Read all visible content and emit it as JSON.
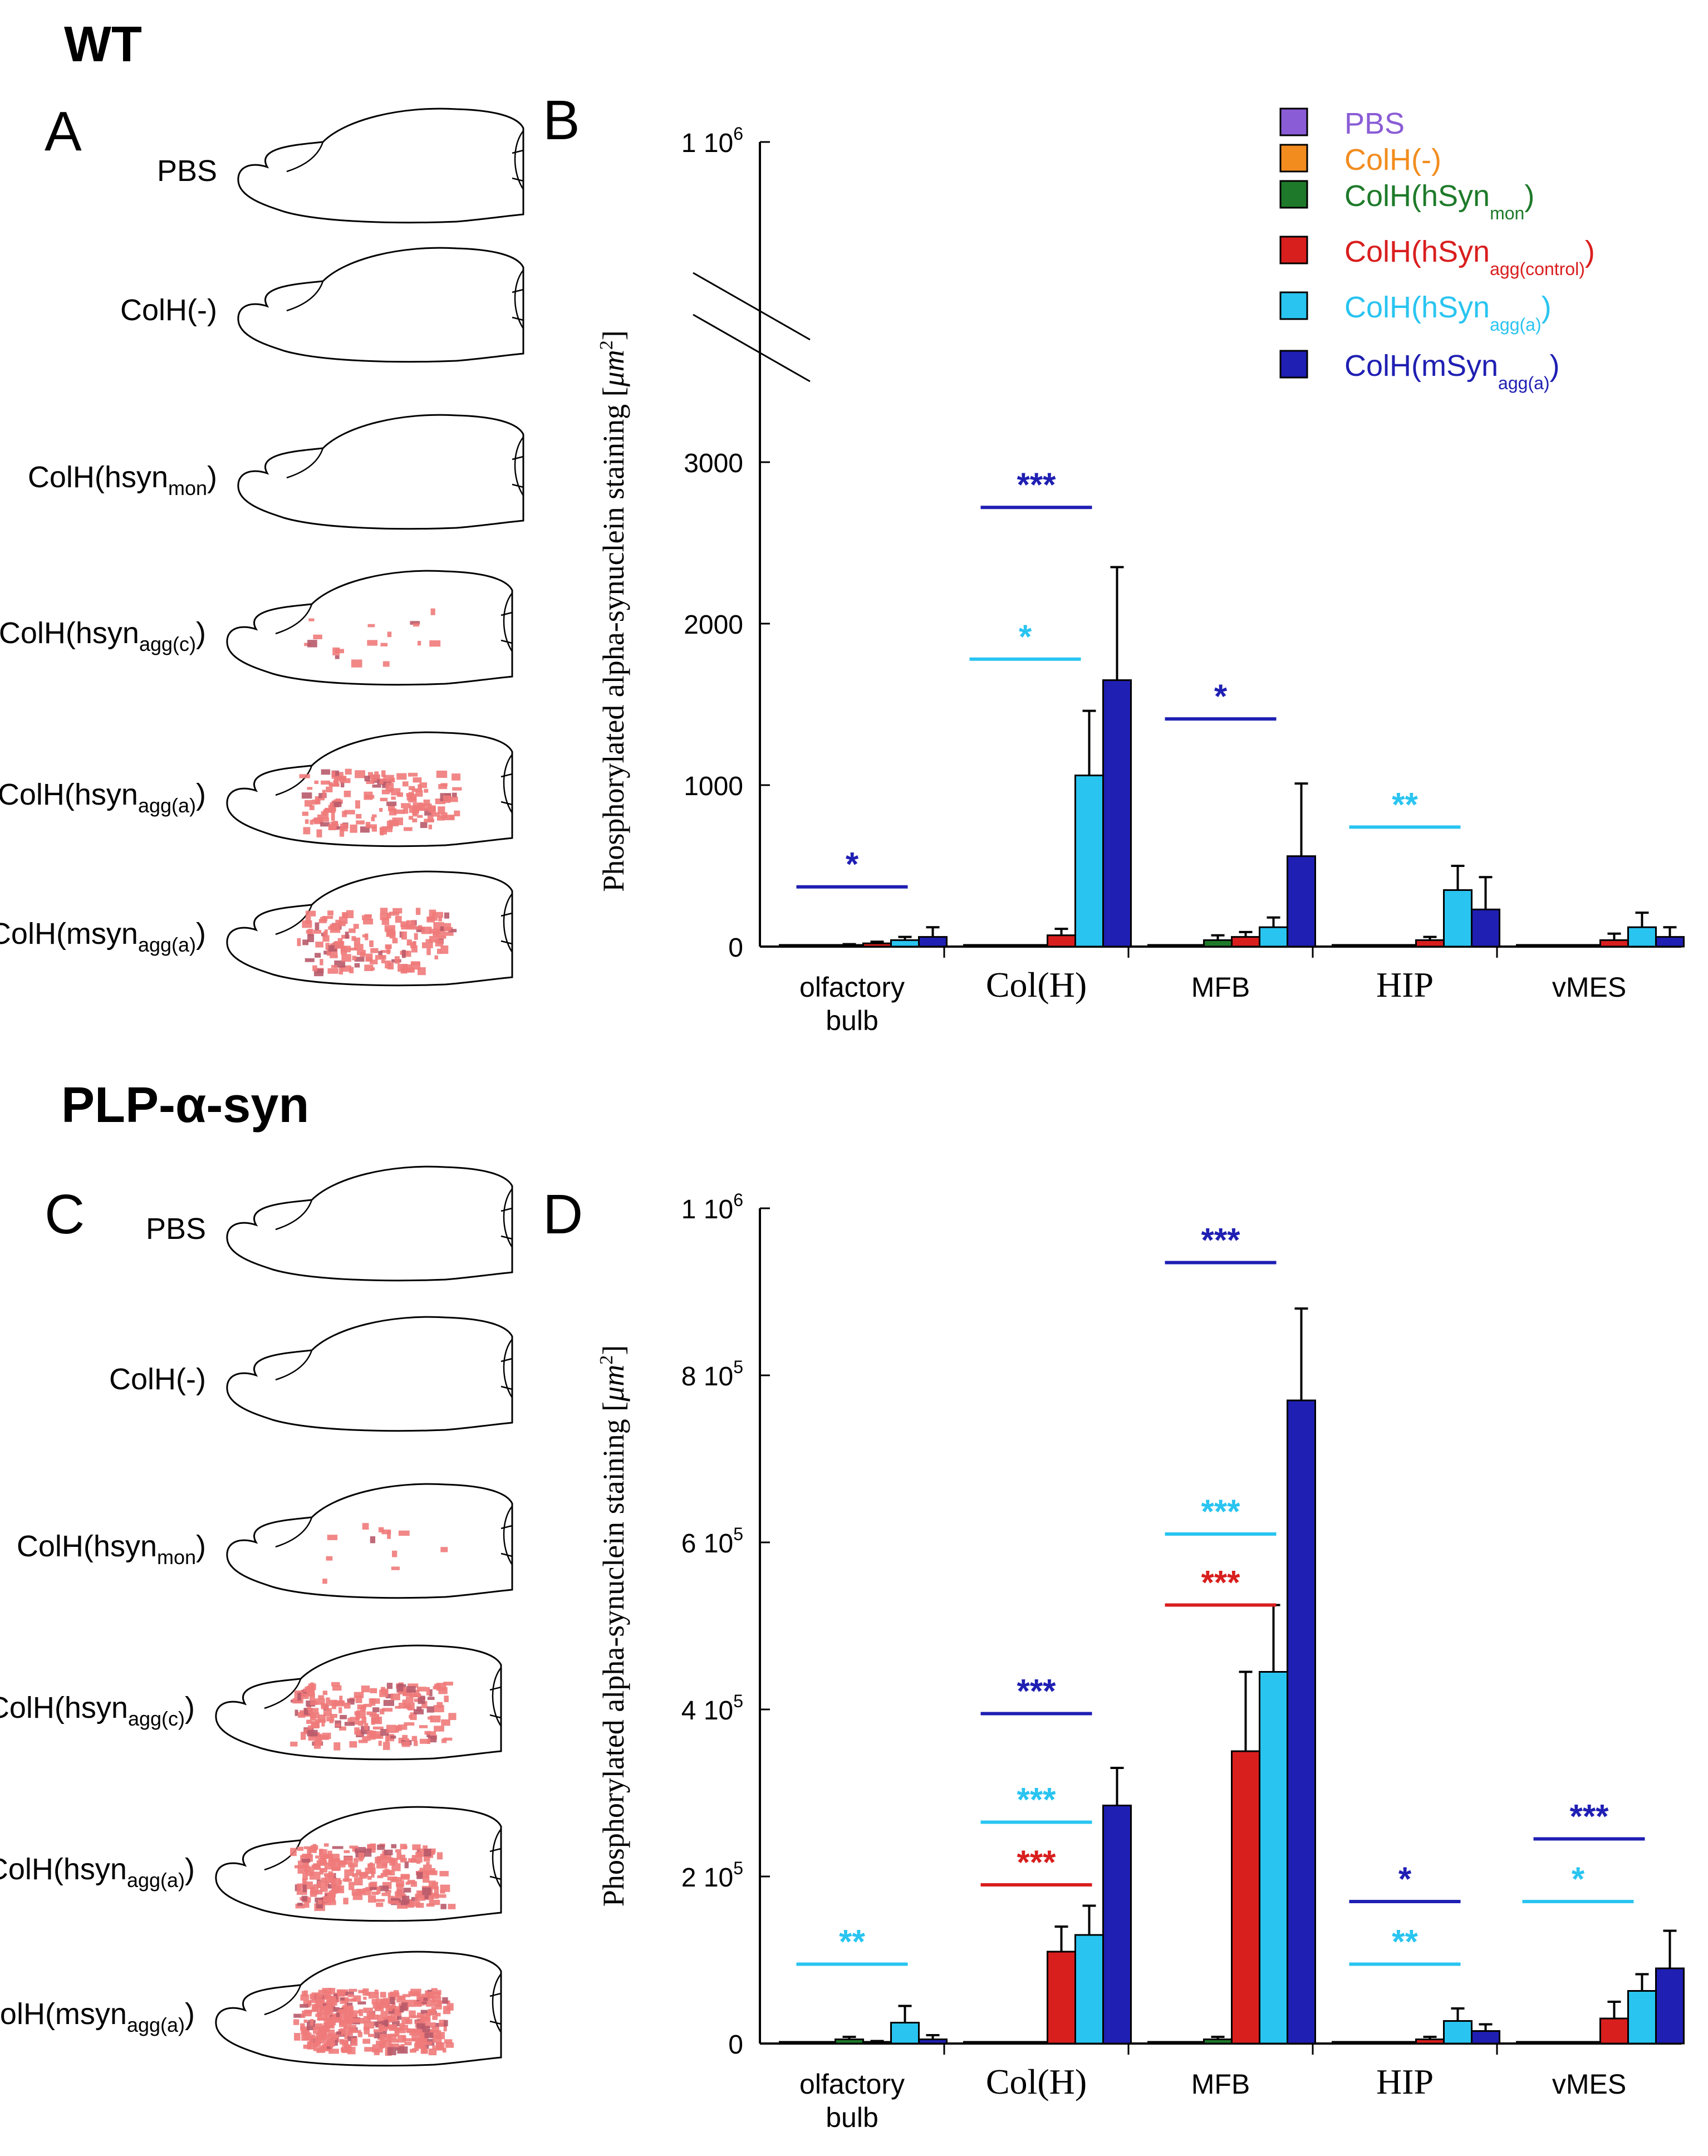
{
  "figure": {
    "wt_title": "WT",
    "plp_title": "PLP-α-syn",
    "panel_A": "A",
    "panel_B": "B",
    "panel_C": "C",
    "panel_D": "D"
  },
  "brain_labels": [
    {
      "main": "PBS",
      "sub": ""
    },
    {
      "main": "ColH(-)",
      "sub": ""
    },
    {
      "main": "ColH(hsyn",
      "sub": "mon",
      "end": ")"
    },
    {
      "main": "ColH(hsyn",
      "sub": "agg(c)",
      "end": ")"
    },
    {
      "main": "ColH(hsyn",
      "sub": "agg(a)",
      "end": ")"
    },
    {
      "main": "ColH(msyn",
      "sub": "agg(a)",
      "end": ")"
    }
  ],
  "legend": [
    {
      "main": "PBS",
      "sub": "",
      "color": "#8a5cd6"
    },
    {
      "main": "ColH(-)",
      "sub": "",
      "color": "#f28c1e"
    },
    {
      "main": "ColH(hSyn",
      "sub": "mon",
      "color": "#1e7a2a"
    },
    {
      "main": "ColH(hSyn",
      "sub": "agg(control)",
      "color": "#d91e1e"
    },
    {
      "main": "ColH(hSyn",
      "sub": "agg(a)",
      "color": "#29c4f0"
    },
    {
      "main": "ColH(mSyn",
      "sub": "agg(a)",
      "color": "#1f1fb3"
    }
  ],
  "chart_data": [
    {
      "type": "bar",
      "title": "WT",
      "ylabel": "Phosphorylated alpha-synuclein staining [μm²]",
      "ylabel_unit": "μm",
      "ytick_labels": [
        "0",
        "1000",
        "2000",
        "3000"
      ],
      "y_break_label": "1 10",
      "y_break_exp": "6",
      "ylim": [
        0,
        3000
      ],
      "categories": [
        "olfactory bulb",
        "Col(H)",
        "MFB",
        "HIP",
        "vMES"
      ],
      "category_lines": [
        [
          "olfactory",
          "bulb"
        ],
        [
          "Col(H)"
        ],
        [
          "MFB"
        ],
        [
          "HIP"
        ],
        [
          "vMES"
        ]
      ],
      "series": [
        {
          "name": "PBS",
          "values": [
            5,
            5,
            5,
            5,
            5
          ],
          "errors": [
            0,
            0,
            0,
            0,
            0
          ]
        },
        {
          "name": "ColH(-)",
          "values": [
            5,
            5,
            5,
            5,
            5
          ],
          "errors": [
            0,
            0,
            0,
            0,
            0
          ]
        },
        {
          "name": "ColH(hSyn mon)",
          "values": [
            10,
            5,
            40,
            5,
            5
          ],
          "errors": [
            5,
            0,
            30,
            0,
            0
          ]
        },
        {
          "name": "ColH(hSyn agg(control))",
          "values": [
            20,
            70,
            60,
            40,
            40
          ],
          "errors": [
            10,
            40,
            30,
            20,
            40
          ]
        },
        {
          "name": "ColH(hSyn agg(a))",
          "values": [
            40,
            1060,
            120,
            350,
            120
          ],
          "errors": [
            20,
            400,
            60,
            150,
            90
          ]
        },
        {
          "name": "ColH(mSyn agg(a))",
          "values": [
            60,
            1650,
            560,
            230,
            60
          ],
          "errors": [
            60,
            700,
            450,
            200,
            60
          ]
        }
      ],
      "significance": [
        {
          "category": 0,
          "label": "*",
          "color": "#1f1fb3",
          "value": 370
        },
        {
          "category": 1,
          "label": "***",
          "color": "#1f1fb3",
          "value": 2720
        },
        {
          "category": 1,
          "label": "*",
          "color": "#29c4f0",
          "value": 1780
        },
        {
          "category": 2,
          "label": "*",
          "color": "#1f1fb3",
          "value": 1410
        },
        {
          "category": 3,
          "label": "**",
          "color": "#29c4f0",
          "value": 740
        }
      ]
    },
    {
      "type": "bar",
      "title": "PLP-α-syn",
      "ylabel": "Phosphorylated alpha-synuclein staining [μm²]",
      "ylabel_unit": "μm",
      "ytick_labels": [
        "0",
        "2 10",
        "4 10",
        "6 10",
        "8 10",
        "1 10"
      ],
      "ytick_exps": [
        "",
        "5",
        "5",
        "5",
        "5",
        "6"
      ],
      "ytick_values": [
        0,
        200000,
        400000,
        600000,
        800000,
        1000000
      ],
      "ylim": [
        0,
        1000000
      ],
      "categories": [
        "olfactory bulb",
        "Col(H)",
        "MFB",
        "HIP",
        "vMES"
      ],
      "category_lines": [
        [
          "olfactory",
          "bulb"
        ],
        [
          "Col(H)"
        ],
        [
          "MFB"
        ],
        [
          "HIP"
        ],
        [
          "vMES"
        ]
      ],
      "series": [
        {
          "name": "PBS",
          "values": [
            1000,
            1000,
            1000,
            1000,
            1000
          ],
          "errors": [
            0,
            0,
            0,
            0,
            0
          ]
        },
        {
          "name": "ColH(-)",
          "values": [
            1000,
            1000,
            1000,
            1000,
            1000
          ],
          "errors": [
            0,
            0,
            0,
            0,
            0
          ]
        },
        {
          "name": "ColH(hSyn mon)",
          "values": [
            5000,
            1000,
            5000,
            1000,
            1000
          ],
          "errors": [
            3000,
            0,
            3000,
            0,
            0
          ]
        },
        {
          "name": "ColH(hSyn agg(control))",
          "values": [
            2000,
            110000,
            350000,
            5000,
            30000
          ],
          "errors": [
            1000,
            30000,
            95000,
            3000,
            20000
          ]
        },
        {
          "name": "ColH(hSyn agg(a))",
          "values": [
            25000,
            130000,
            445000,
            27000,
            63000
          ],
          "errors": [
            20000,
            35000,
            80000,
            15000,
            20000
          ]
        },
        {
          "name": "ColH(mSyn agg(a))",
          "values": [
            5000,
            285000,
            770000,
            15000,
            90000
          ],
          "errors": [
            5000,
            45000,
            110000,
            8000,
            45000
          ]
        }
      ],
      "significance": [
        {
          "category": 0,
          "label": "**",
          "color": "#29c4f0",
          "value": 95000
        },
        {
          "category": 1,
          "label": "***",
          "color": "#1f1fb3",
          "value": 395000
        },
        {
          "category": 1,
          "label": "***",
          "color": "#29c4f0",
          "value": 265000
        },
        {
          "category": 1,
          "label": "***",
          "color": "#d91e1e",
          "value": 190000
        },
        {
          "category": 2,
          "label": "***",
          "color": "#1f1fb3",
          "value": 935000
        },
        {
          "category": 2,
          "label": "***",
          "color": "#29c4f0",
          "value": 610000
        },
        {
          "category": 2,
          "label": "***",
          "color": "#d91e1e",
          "value": 525000
        },
        {
          "category": 3,
          "label": "*",
          "color": "#1f1fb3",
          "value": 170000
        },
        {
          "category": 3,
          "label": "**",
          "color": "#29c4f0",
          "value": 95000
        },
        {
          "category": 4,
          "label": "***",
          "color": "#1f1fb3",
          "value": 245000
        },
        {
          "category": 4,
          "label": "*",
          "color": "#29c4f0",
          "value": 170000
        }
      ]
    }
  ]
}
